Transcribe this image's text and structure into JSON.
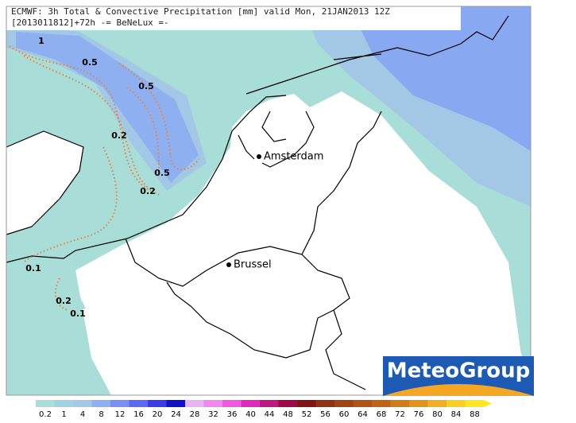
{
  "header": {
    "line1": "ECMWF: 3h Total & Convective Precipitation [mm] valid Mon, 21JAN2013 12Z",
    "line2": "[2013011812]+72h -= BeNeLux =-"
  },
  "map": {
    "cities": [
      "Amsterdam",
      "Brussel"
    ],
    "contour_labels": [
      "1",
      "0.5",
      "0.5",
      "0.2",
      "0.5",
      "0.2",
      "0.1",
      "0.2",
      "0.1"
    ]
  },
  "logo": "MeteoGroup",
  "legend": {
    "labels": [
      "0.2",
      "1",
      "4",
      "8",
      "12",
      "16",
      "20",
      "24",
      "28",
      "32",
      "36",
      "40",
      "44",
      "48",
      "52",
      "56",
      "60",
      "64",
      "68",
      "72",
      "76",
      "80",
      "84",
      "88"
    ]
  }
}
